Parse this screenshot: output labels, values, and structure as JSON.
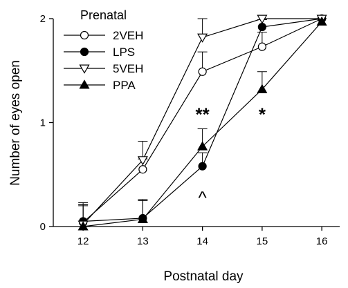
{
  "chart_data": {
    "type": "line",
    "xlabel": "Postnatal day",
    "ylabel": "Number of eyes open",
    "xlim": [
      11.5,
      16.3
    ],
    "ylim": [
      0,
      2
    ],
    "x_ticks": [
      "12",
      "13",
      "14",
      "15",
      "16"
    ],
    "y_ticks": [
      "0",
      "1",
      "2"
    ],
    "x": [
      12,
      13,
      14,
      15,
      16
    ],
    "legend_title": "Prenatal",
    "legend_position": "top-left",
    "grid": false,
    "series": [
      {
        "name": "2VEH",
        "marker": "circle-open",
        "values": [
          0.04,
          0.55,
          1.49,
          1.73,
          2.0
        ],
        "error_upper": [
          0.19,
          0.1,
          0.19,
          0.14,
          0.0
        ]
      },
      {
        "name": "LPS",
        "marker": "circle-filled",
        "values": [
          0.05,
          0.08,
          0.58,
          1.92,
          2.0
        ],
        "error_upper": [
          0.16,
          0.18,
          0.13,
          0.07,
          0.0
        ]
      },
      {
        "name": "5VEH",
        "marker": "triangle-down-open",
        "values": [
          0.02,
          0.64,
          1.82,
          2.0,
          2.0
        ],
        "error_upper": [
          0.19,
          0.18,
          0.18,
          0.0,
          0.0
        ]
      },
      {
        "name": "PPA",
        "marker": "triangle-up-filled",
        "values": [
          0.0,
          0.07,
          0.77,
          1.32,
          1.97
        ],
        "error_upper": [
          0.2,
          0.18,
          0.17,
          0.17,
          0.03
        ]
      }
    ],
    "annotations": [
      {
        "text": "**",
        "x": 14,
        "y": 1.1
      },
      {
        "text": "^",
        "x": 14,
        "y": 0.34
      },
      {
        "text": "*",
        "x": 15,
        "y": 1.1
      }
    ]
  }
}
